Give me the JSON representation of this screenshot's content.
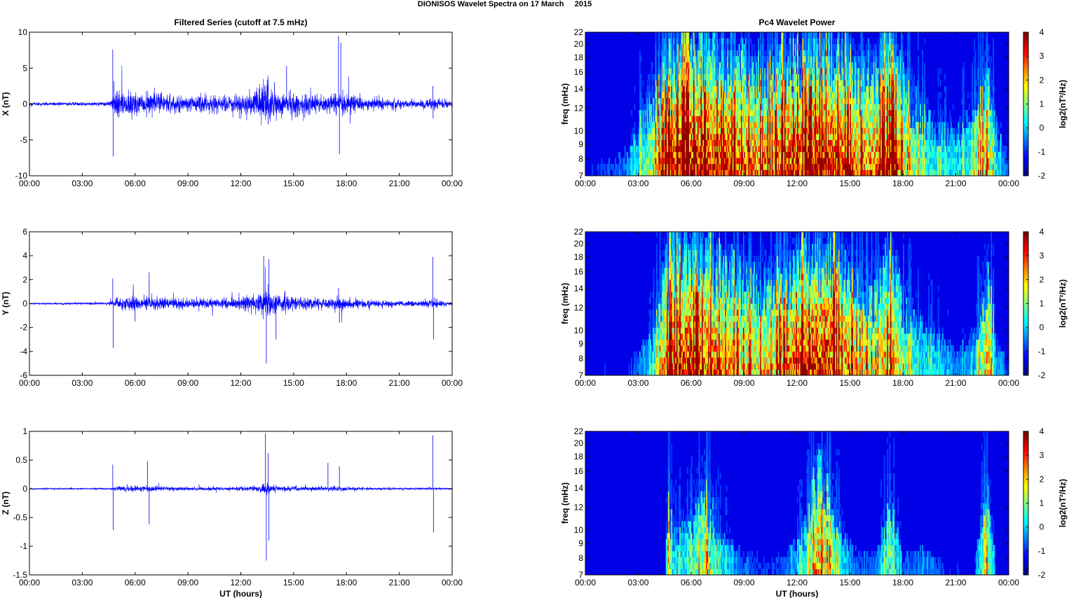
{
  "figure": {
    "title": "DIONISOS Wavelet Spectra on 17 March     2015"
  },
  "chart_data": [
    {
      "type": "line",
      "panel": "series-x",
      "title": "Filtered Series (cutoff at 7.5 mHz)",
      "ylabel": "X (nT)",
      "xlabel": "",
      "xlim_hours": [
        0,
        24
      ],
      "ylim": [
        -10,
        10
      ],
      "yticks": [
        -10,
        -5,
        0,
        5,
        10
      ],
      "ytick_labels": [
        "-10",
        "-5",
        "0",
        "5",
        "10"
      ],
      "xtick_labels": [
        "00:00",
        "03:00",
        "06:00",
        "09:00",
        "12:00",
        "15:00",
        "18:00",
        "21:00",
        "00:00"
      ],
      "color": "#0000ff",
      "activity_envelope": [
        [
          0,
          0.12
        ],
        [
          4.5,
          0.15
        ],
        [
          4.7,
          0.5
        ],
        [
          5.0,
          0.9
        ],
        [
          6.0,
          0.9
        ],
        [
          7.0,
          0.8
        ],
        [
          8.0,
          0.6
        ],
        [
          9.0,
          0.5
        ],
        [
          10.0,
          0.7
        ],
        [
          11.0,
          0.6
        ],
        [
          12.0,
          0.7
        ],
        [
          13.0,
          1.1
        ],
        [
          13.5,
          1.6
        ],
        [
          14.0,
          1.1
        ],
        [
          15.0,
          0.9
        ],
        [
          16.0,
          0.8
        ],
        [
          17.0,
          0.6
        ],
        [
          17.5,
          1.0
        ],
        [
          18.0,
          0.8
        ],
        [
          19.0,
          0.5
        ],
        [
          20.0,
          0.4
        ],
        [
          21.0,
          0.3
        ],
        [
          22.0,
          0.3
        ],
        [
          23.0,
          0.4
        ],
        [
          24.0,
          0.2
        ]
      ],
      "spikes": [
        [
          4.73,
          7.6
        ],
        [
          4.75,
          -7.3
        ],
        [
          4.8,
          3.2
        ],
        [
          13.5,
          3.4
        ],
        [
          13.55,
          -2.8
        ],
        [
          14.6,
          5.3
        ],
        [
          17.55,
          9.5
        ],
        [
          17.6,
          -7.0
        ],
        [
          17.68,
          8.5
        ],
        [
          22.9,
          2.5
        ],
        [
          22.92,
          -2.0
        ]
      ]
    },
    {
      "type": "line",
      "panel": "series-y",
      "ylabel": "Y (nT)",
      "xlabel": "",
      "xlim_hours": [
        0,
        24
      ],
      "ylim": [
        -6,
        6
      ],
      "yticks": [
        -6,
        -4,
        -2,
        0,
        2,
        4,
        6
      ],
      "ytick_labels": [
        "-6",
        "-4",
        "-2",
        "0",
        "2",
        "4",
        "6"
      ],
      "xtick_labels": [
        "00:00",
        "03:00",
        "06:00",
        "09:00",
        "12:00",
        "15:00",
        "18:00",
        "21:00",
        "00:00"
      ],
      "color": "#0000ff",
      "activity_envelope": [
        [
          0,
          0.06
        ],
        [
          4.5,
          0.1
        ],
        [
          4.8,
          0.3
        ],
        [
          5.0,
          0.45
        ],
        [
          6.0,
          0.55
        ],
        [
          7.0,
          0.5
        ],
        [
          8.0,
          0.4
        ],
        [
          9.0,
          0.35
        ],
        [
          10.0,
          0.35
        ],
        [
          11.0,
          0.35
        ],
        [
          12.0,
          0.45
        ],
        [
          13.0,
          0.7
        ],
        [
          13.5,
          1.0
        ],
        [
          14.0,
          0.7
        ],
        [
          15.0,
          0.5
        ],
        [
          16.0,
          0.4
        ],
        [
          17.0,
          0.35
        ],
        [
          17.5,
          0.55
        ],
        [
          18.0,
          0.4
        ],
        [
          19.0,
          0.3
        ],
        [
          20.0,
          0.3
        ],
        [
          21.0,
          0.2
        ],
        [
          22.0,
          0.2
        ],
        [
          23.0,
          0.3
        ],
        [
          24.0,
          0.15
        ]
      ],
      "spikes": [
        [
          4.73,
          2.1
        ],
        [
          4.76,
          -3.7
        ],
        [
          6.8,
          2.6
        ],
        [
          6.0,
          -1.5
        ],
        [
          13.3,
          4.0
        ],
        [
          13.45,
          -5.0
        ],
        [
          13.6,
          3.7
        ],
        [
          14.0,
          -3.0
        ],
        [
          17.55,
          1.3
        ],
        [
          17.6,
          -1.6
        ],
        [
          22.9,
          3.9
        ],
        [
          22.95,
          -3.0
        ]
      ]
    },
    {
      "type": "line",
      "panel": "series-z",
      "ylabel": "Z (nT)",
      "xlabel": "UT (hours)",
      "xlim_hours": [
        0,
        24
      ],
      "ylim": [
        -1.5,
        1
      ],
      "yticks": [
        -1.5,
        -1,
        -0.5,
        0,
        0.5,
        1
      ],
      "ytick_labels": [
        "-1.5",
        "-1",
        "-0.5",
        "0",
        "0.5",
        "1"
      ],
      "xtick_labels": [
        "00:00",
        "03:00",
        "06:00",
        "09:00",
        "12:00",
        "15:00",
        "18:00",
        "21:00",
        "00:00"
      ],
      "color": "#0000ff",
      "activity_envelope": [
        [
          0,
          0.05
        ],
        [
          4.5,
          0.06
        ],
        [
          4.8,
          0.12
        ],
        [
          5.0,
          0.18
        ],
        [
          6.0,
          0.22
        ],
        [
          7.0,
          0.2
        ],
        [
          8.0,
          0.15
        ],
        [
          9.0,
          0.13
        ],
        [
          10.0,
          0.13
        ],
        [
          11.0,
          0.12
        ],
        [
          12.0,
          0.15
        ],
        [
          13.0,
          0.22
        ],
        [
          13.5,
          0.35
        ],
        [
          14.0,
          0.22
        ],
        [
          15.0,
          0.16
        ],
        [
          16.0,
          0.15
        ],
        [
          17.0,
          0.14
        ],
        [
          17.5,
          0.2
        ],
        [
          18.0,
          0.15
        ],
        [
          19.0,
          0.11
        ],
        [
          20.0,
          0.1
        ],
        [
          21.0,
          0.08
        ],
        [
          22.0,
          0.08
        ],
        [
          23.0,
          0.1
        ],
        [
          24.0,
          0.06
        ]
      ],
      "spikes": [
        [
          4.73,
          0.42
        ],
        [
          4.76,
          -0.72
        ],
        [
          6.7,
          0.48
        ],
        [
          6.8,
          -0.62
        ],
        [
          13.4,
          0.97
        ],
        [
          13.45,
          -1.25
        ],
        [
          13.55,
          0.62
        ],
        [
          13.6,
          -0.9
        ],
        [
          16.95,
          0.45
        ],
        [
          17.6,
          0.39
        ],
        [
          22.9,
          0.93
        ],
        [
          22.95,
          -0.76
        ]
      ]
    },
    {
      "type": "heatmap",
      "panel": "spectrum-x",
      "title": "Pc4 Wavelet Power",
      "ylabel": "freq (mHz)",
      "xlabel": "",
      "xlim_hours": [
        0,
        24
      ],
      "ylim_mHz": [
        7,
        22
      ],
      "yscale": "log",
      "yticks": [
        7,
        8,
        9,
        10,
        12,
        14,
        16,
        18,
        20,
        22
      ],
      "ytick_labels": [
        "7",
        "8",
        "9",
        "10",
        "12",
        "14",
        "16",
        "18",
        "20",
        "22"
      ],
      "xtick_labels": [
        "00:00",
        "03:00",
        "06:00",
        "09:00",
        "12:00",
        "15:00",
        "18:00",
        "21:00",
        "00:00"
      ],
      "clim": [
        -2,
        4
      ],
      "colorbar_ticks": [
        -2,
        -1,
        0,
        1,
        2,
        3,
        4
      ],
      "colorbar_label": "log2(nT²/Hz)",
      "colormap": "jet",
      "activity_level": [
        [
          0,
          0.05
        ],
        [
          1.5,
          0.1
        ],
        [
          2.5,
          0.15
        ],
        [
          3.5,
          0.45
        ],
        [
          4.5,
          0.75
        ],
        [
          5.5,
          0.95
        ],
        [
          6.5,
          0.95
        ],
        [
          7.5,
          0.9
        ],
        [
          8.5,
          0.8
        ],
        [
          9.5,
          0.75
        ],
        [
          10.5,
          0.7
        ],
        [
          11.5,
          0.85
        ],
        [
          12.5,
          0.9
        ],
        [
          13.5,
          0.95
        ],
        [
          14.5,
          0.85
        ],
        [
          15.5,
          0.7
        ],
        [
          16.5,
          0.75
        ],
        [
          17.3,
          0.95
        ],
        [
          18.0,
          0.6
        ],
        [
          19.0,
          0.4
        ],
        [
          20.0,
          0.3
        ],
        [
          21.0,
          0.3
        ],
        [
          22.0,
          0.35
        ],
        [
          22.8,
          0.7
        ],
        [
          23.3,
          0.3
        ],
        [
          24.0,
          0.1
        ]
      ]
    },
    {
      "type": "heatmap",
      "panel": "spectrum-y",
      "ylabel": "freq (mHz)",
      "xlabel": "",
      "xlim_hours": [
        0,
        24
      ],
      "ylim_mHz": [
        7,
        22
      ],
      "yscale": "log",
      "yticks": [
        7,
        8,
        9,
        10,
        12,
        14,
        16,
        18,
        20,
        22
      ],
      "ytick_labels": [
        "7",
        "8",
        "9",
        "10",
        "12",
        "14",
        "16",
        "18",
        "20",
        "22"
      ],
      "xtick_labels": [
        "00:00",
        "03:00",
        "06:00",
        "09:00",
        "12:00",
        "15:00",
        "18:00",
        "21:00",
        "00:00"
      ],
      "clim": [
        -2,
        4
      ],
      "colorbar_ticks": [
        -2,
        -1,
        0,
        1,
        2,
        3,
        4
      ],
      "colorbar_label": "log2(nT²/Hz)",
      "colormap": "jet",
      "activity_level": [
        [
          0,
          0.04
        ],
        [
          2.5,
          0.06
        ],
        [
          3.8,
          0.25
        ],
        [
          4.5,
          0.7
        ],
        [
          5.5,
          0.9
        ],
        [
          6.5,
          0.85
        ],
        [
          7.5,
          0.75
        ],
        [
          8.5,
          0.65
        ],
        [
          9.5,
          0.6
        ],
        [
          10.5,
          0.6
        ],
        [
          11.5,
          0.75
        ],
        [
          12.5,
          0.85
        ],
        [
          13.5,
          0.95
        ],
        [
          14.5,
          0.8
        ],
        [
          15.5,
          0.6
        ],
        [
          16.5,
          0.55
        ],
        [
          17.3,
          0.8
        ],
        [
          18.0,
          0.45
        ],
        [
          19.0,
          0.3
        ],
        [
          20.0,
          0.25
        ],
        [
          21.0,
          0.15
        ],
        [
          22.0,
          0.2
        ],
        [
          22.8,
          0.7
        ],
        [
          23.3,
          0.2
        ],
        [
          24.0,
          0.05
        ]
      ]
    },
    {
      "type": "heatmap",
      "panel": "spectrum-z",
      "ylabel": "freq (mHz)",
      "xlabel": "UT (hours)",
      "xlim_hours": [
        0,
        24
      ],
      "ylim_mHz": [
        7,
        22
      ],
      "yscale": "log",
      "yticks": [
        7,
        8,
        9,
        10,
        12,
        14,
        16,
        18,
        20,
        22
      ],
      "ytick_labels": [
        "7",
        "8",
        "9",
        "10",
        "12",
        "14",
        "16",
        "18",
        "20",
        "22"
      ],
      "xtick_labels": [
        "00:00",
        "03:00",
        "06:00",
        "09:00",
        "12:00",
        "15:00",
        "18:00",
        "21:00",
        "00:00"
      ],
      "clim": [
        -2,
        4
      ],
      "colorbar_ticks": [
        -2,
        -1,
        0,
        1,
        2,
        3,
        4
      ],
      "colorbar_label": "log2(nT²/Hz)",
      "colormap": "jet",
      "activity_level": [
        [
          0,
          0.0
        ],
        [
          4.5,
          0.02
        ],
        [
          4.7,
          0.5
        ],
        [
          5.0,
          0.25
        ],
        [
          6.0,
          0.35
        ],
        [
          6.8,
          0.55
        ],
        [
          7.5,
          0.3
        ],
        [
          8.5,
          0.15
        ],
        [
          9.5,
          0.1
        ],
        [
          10.5,
          0.08
        ],
        [
          11.5,
          0.15
        ],
        [
          12.5,
          0.3
        ],
        [
          13.2,
          0.75
        ],
        [
          13.6,
          0.6
        ],
        [
          14.5,
          0.3
        ],
        [
          15.5,
          0.1
        ],
        [
          16.5,
          0.15
        ],
        [
          17.3,
          0.45
        ],
        [
          18.0,
          0.1
        ],
        [
          19.5,
          0.15
        ],
        [
          20.5,
          0.05
        ],
        [
          22.0,
          0.05
        ],
        [
          22.8,
          0.55
        ],
        [
          23.3,
          0.03
        ],
        [
          24.0,
          0.0
        ]
      ]
    }
  ]
}
